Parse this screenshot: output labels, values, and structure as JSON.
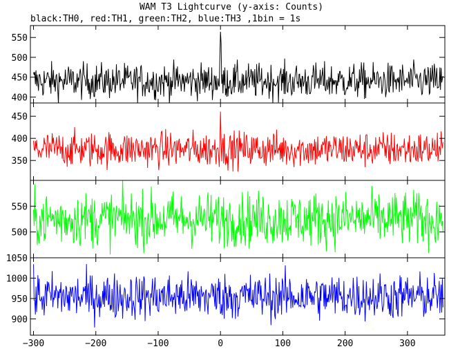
{
  "chart_data": {
    "type": "line",
    "title": "WAM T3 Lightcurve (y-axis: Counts)",
    "subtitle": "black:TH0, red:TH1, green:TH2, blue:TH3 ,1bin = 1s",
    "xlabel": "",
    "ylabel": "",
    "xlim": [
      -305,
      360
    ],
    "x_ticks": [
      -300,
      -200,
      -100,
      0,
      100,
      200,
      300
    ],
    "panels": [
      {
        "series": "TH0",
        "color": "#000000",
        "ylim": [
          385,
          580
        ],
        "y_ticks": [
          400,
          450,
          500,
          550
        ],
        "baseline": 440,
        "noise": 22,
        "burst": 130
      },
      {
        "series": "TH1",
        "color": "#ff0000",
        "ylim": [
          305,
          480
        ],
        "y_ticks": [
          350,
          400,
          450
        ],
        "baseline": 375,
        "noise": 20,
        "burst": 90
      },
      {
        "series": "TH2",
        "color": "#00ff00",
        "ylim": [
          450,
          600
        ],
        "y_ticks": [
          500,
          550
        ],
        "baseline": 525,
        "noise": 26,
        "burst": 0
      },
      {
        "series": "TH3",
        "color": "#0000ff",
        "ylim": [
          860,
          1050
        ],
        "y_ticks": [
          900,
          950,
          1000,
          1050
        ],
        "baseline": 955,
        "noise": 28,
        "burst": 0
      }
    ]
  }
}
